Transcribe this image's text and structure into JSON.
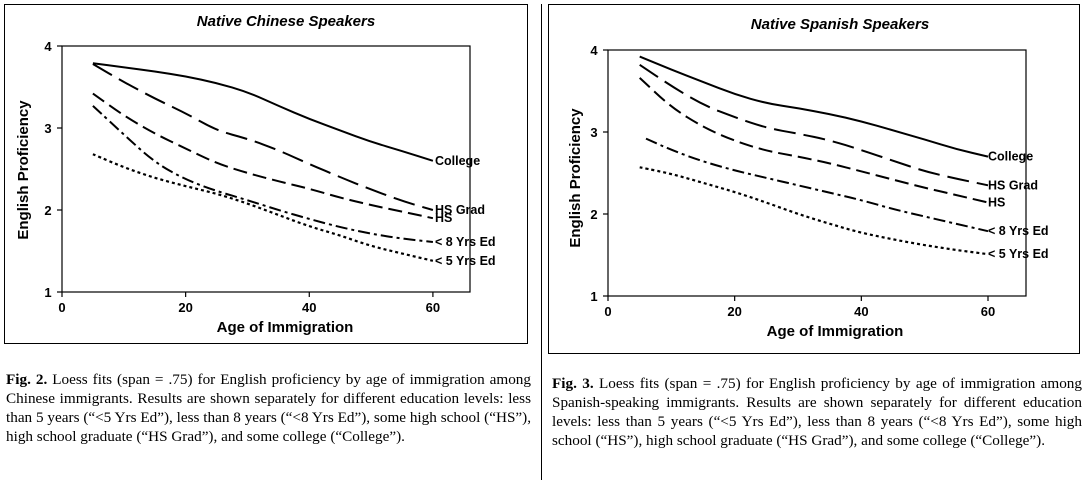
{
  "chart_data": [
    {
      "type": "line",
      "title": "Native Chinese Speakers",
      "xlabel": "Age of Immigration",
      "ylabel": "English Proficiency",
      "xlim": [
        0,
        66
      ],
      "ylim": [
        1,
        4
      ],
      "xticks": [
        "0",
        "20",
        "40",
        "60"
      ],
      "xtick_values": [
        0,
        20,
        40,
        60
      ],
      "yticks": [
        "1",
        "2",
        "3",
        "4"
      ],
      "ytick_values": [
        1,
        2,
        3,
        4
      ],
      "series": [
        {
          "name": "College",
          "x": [
            5,
            10,
            15,
            20,
            25,
            30,
            35,
            40,
            45,
            50,
            55,
            60
          ],
          "values": [
            3.79,
            3.74,
            3.69,
            3.63,
            3.55,
            3.44,
            3.27,
            3.11,
            2.97,
            2.83,
            2.72,
            2.6
          ]
        },
        {
          "name": "HS Grad",
          "x": [
            5,
            10,
            15,
            20,
            25,
            30,
            35,
            40,
            45,
            50,
            55,
            60
          ],
          "values": [
            3.78,
            3.56,
            3.36,
            3.18,
            2.97,
            2.87,
            2.73,
            2.56,
            2.4,
            2.25,
            2.11,
            2.0
          ]
        },
        {
          "name": "HS",
          "x": [
            5,
            10,
            15,
            20,
            25,
            30,
            35,
            40,
            45,
            50,
            55,
            60
          ],
          "values": [
            3.42,
            3.15,
            2.93,
            2.75,
            2.57,
            2.45,
            2.35,
            2.26,
            2.15,
            2.06,
            1.98,
            1.9
          ]
        },
        {
          "name": "< 8 Yrs Ed",
          "x": [
            5,
            10,
            15,
            20,
            25,
            30,
            35,
            40,
            45,
            50,
            55,
            60
          ],
          "values": [
            3.27,
            2.92,
            2.58,
            2.37,
            2.23,
            2.12,
            2.0,
            1.89,
            1.79,
            1.71,
            1.65,
            1.61
          ]
        },
        {
          "name": "< 5 Yrs Ed",
          "x": [
            5,
            10,
            15,
            20,
            25,
            30,
            35,
            40,
            45,
            50,
            55,
            60
          ],
          "values": [
            2.68,
            2.52,
            2.39,
            2.29,
            2.2,
            2.08,
            1.94,
            1.8,
            1.69,
            1.56,
            1.47,
            1.38
          ]
        }
      ]
    },
    {
      "type": "line",
      "title": "Native Spanish Speakers",
      "xlabel": "Age of Immigration",
      "ylabel": "English Proficiency",
      "xlim": [
        0,
        66
      ],
      "ylim": [
        1,
        4
      ],
      "xticks": [
        "0",
        "20",
        "40",
        "60"
      ],
      "xtick_values": [
        0,
        20,
        40,
        60
      ],
      "yticks": [
        "1",
        "2",
        "3",
        "4"
      ],
      "ytick_values": [
        1,
        2,
        3,
        4
      ],
      "series": [
        {
          "name": "College",
          "x": [
            5,
            10,
            15,
            20,
            25,
            30,
            35,
            40,
            45,
            50,
            55,
            60
          ],
          "values": [
            3.92,
            3.76,
            3.61,
            3.46,
            3.35,
            3.29,
            3.22,
            3.13,
            3.02,
            2.91,
            2.79,
            2.7
          ]
        },
        {
          "name": "HS Grad",
          "x": [
            5,
            10,
            15,
            20,
            25,
            30,
            35,
            40,
            45,
            50,
            55,
            60
          ],
          "values": [
            3.82,
            3.56,
            3.33,
            3.18,
            3.05,
            2.98,
            2.9,
            2.78,
            2.65,
            2.52,
            2.43,
            2.35
          ]
        },
        {
          "name": "HS",
          "x": [
            5,
            10,
            15,
            20,
            25,
            30,
            35,
            40,
            45,
            50,
            55,
            60
          ],
          "values": [
            3.66,
            3.3,
            3.06,
            2.89,
            2.77,
            2.7,
            2.62,
            2.52,
            2.42,
            2.32,
            2.23,
            2.14
          ]
        },
        {
          "name": "< 8 Yrs Ed",
          "x": [
            6,
            10,
            15,
            20,
            25,
            30,
            35,
            40,
            45,
            50,
            55,
            60
          ],
          "values": [
            2.92,
            2.78,
            2.64,
            2.53,
            2.44,
            2.35,
            2.26,
            2.17,
            2.06,
            1.97,
            1.88,
            1.79
          ]
        },
        {
          "name": "< 5 Yrs Ed",
          "x": [
            5,
            10,
            15,
            20,
            25,
            30,
            35,
            40,
            45,
            50,
            55,
            60
          ],
          "values": [
            2.57,
            2.49,
            2.38,
            2.27,
            2.14,
            2.0,
            1.88,
            1.77,
            1.69,
            1.62,
            1.56,
            1.51
          ]
        }
      ]
    }
  ],
  "captions": [
    {
      "fig_label": "Fig. 2.",
      "text": " Loess fits (span = .75) for English proficiency by age of immigration among Chinese immigrants. Results are shown separately for different education levels: less than 5 years (“<5 Yrs Ed”), less than 8 years (“<8 Yrs Ed”), some high school (“HS”), high school graduate (“HS Grad”), and some college (“College”)."
    },
    {
      "fig_label": "Fig. 3.",
      "text": " Loess fits (span = .75) for English proficiency by age of immigration among Spanish-speaking immigrants. Results are shown separately for different education levels: less than 5 years (“<5 Yrs Ed”), less than 8 years (“<8 Yrs Ed”), some high school (“HS”), high school graduate (“HS Grad”), and some college (“College”)."
    }
  ]
}
